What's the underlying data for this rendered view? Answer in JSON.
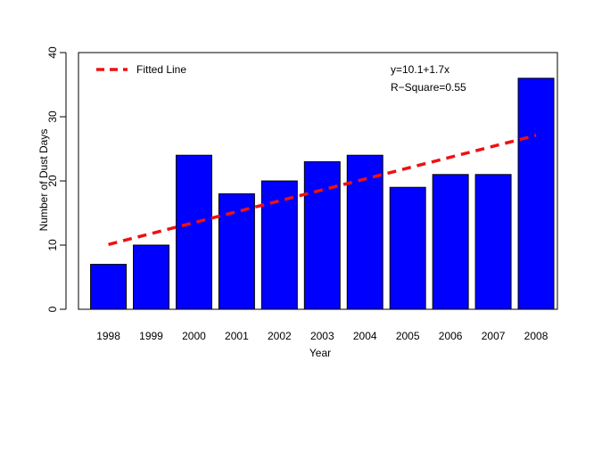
{
  "chart_data": {
    "type": "bar",
    "title": "",
    "xlabel": "Year",
    "ylabel": "Number of Dust Days",
    "categories": [
      "1998",
      "1999",
      "2000",
      "2001",
      "2002",
      "2003",
      "2004",
      "2005",
      "2006",
      "2007",
      "2008"
    ],
    "series": [
      {
        "values": [
          7,
          10,
          24,
          18,
          20,
          23,
          24,
          19,
          21,
          21,
          36
        ],
        "color": "#0000ff"
      }
    ],
    "ylim": [
      0,
      40
    ],
    "yticks": [
      0,
      10,
      20,
      30,
      40
    ],
    "grid": false,
    "fitted_line": {
      "label": "Fitted Line",
      "color": "#ee1111",
      "intercept": 10.1,
      "slope": 1.7,
      "equation": "y=10.1+1.7x",
      "r_square": "R−Square=0.55"
    },
    "legend_placement": "top-left"
  }
}
